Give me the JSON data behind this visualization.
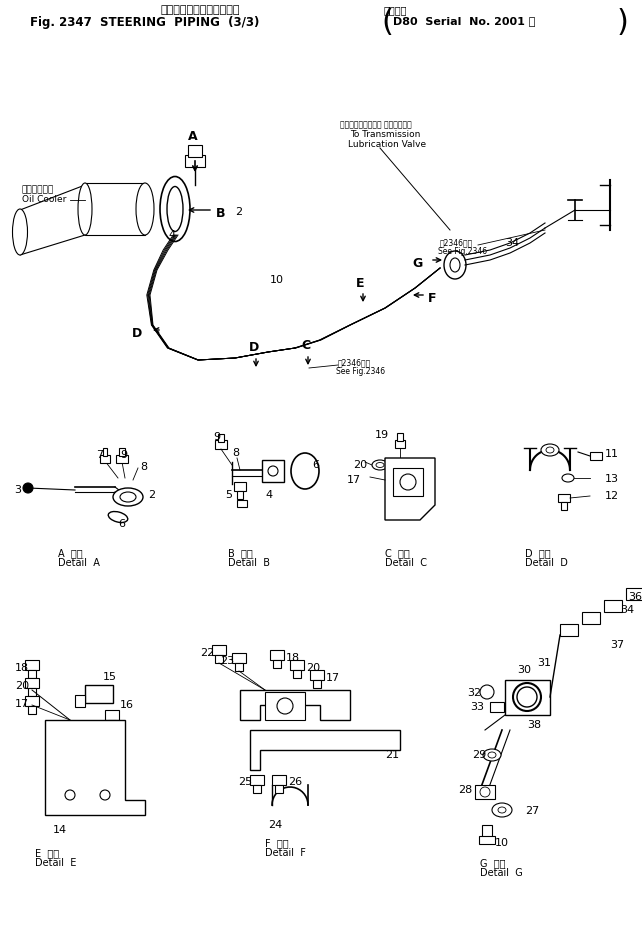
{
  "bg_color": "#ffffff",
  "fig_width": 6.42,
  "fig_height": 9.51,
  "dpi": 100,
  "title_jp": "ステアリング　バイピング",
  "title_en": "Fig. 2347  STEERING  PIPING  (3/3)",
  "title_right_jp": "適用号機",
  "title_right": "D80  Serial  No. 2001 ～",
  "header_note1_jp": "トランスミッション 潤滑バルブへ",
  "header_note1_en1": "To Transmission",
  "header_note1_en2": "Lubrication Valve",
  "fig2346_jp": "図2346参照",
  "fig2346_en": "See Fig.2346",
  "oil_cooler_jp": "オイルクーラ",
  "oil_cooler_en": "Oil Cooler"
}
